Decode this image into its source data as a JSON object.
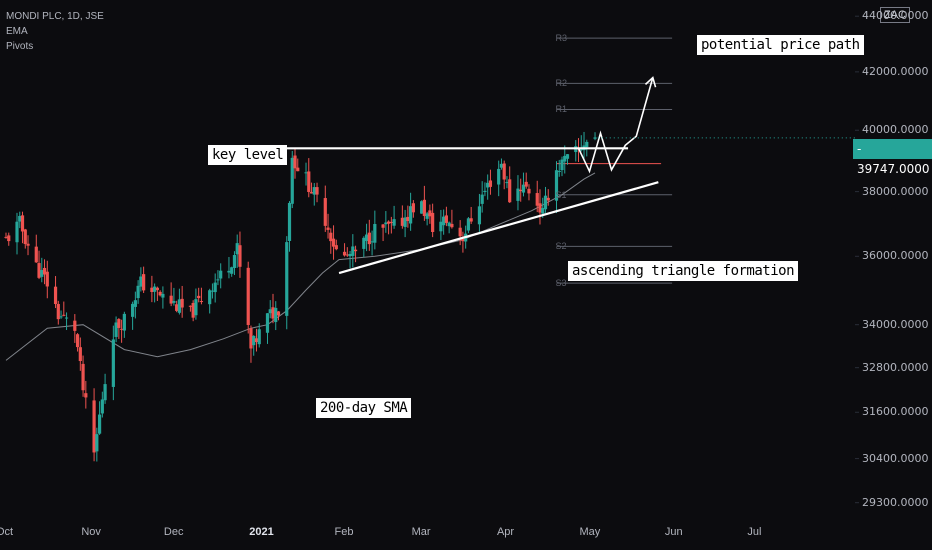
{
  "legend": {
    "symbol_line": "MONDI PLC, 1D, JSE",
    "indicator_1": "EMA",
    "indicator_2": "Pivots"
  },
  "symbol_badge": "ZAC",
  "last_price": "39747.0000",
  "annotations": {
    "key_level": "key level",
    "potential_path": "potential price path",
    "triangle": "ascending triangle formation",
    "sma": "200-day SMA"
  },
  "colors": {
    "background": "#0c0c0f",
    "up_candle": "#26a69a",
    "down_candle": "#ef5350",
    "price_tag": "#26a69a",
    "sma_line": "#9ea3aa",
    "annotation": "#ffffff"
  },
  "chart_data": {
    "type": "candlestick",
    "title": "MONDI PLC, 1D, JSE",
    "y_scale": "log",
    "ylim": [
      29000,
      44600
    ],
    "y_ticks": [
      "44000.0000",
      "42000.0000",
      "40000.0000",
      "38000.0000",
      "36000.0000",
      "34000.0000",
      "32800.0000",
      "31600.0000",
      "30400.0000",
      "29300.0000"
    ],
    "x_ticks": [
      "Oct",
      "Nov",
      "Dec",
      "2021",
      "Feb",
      "Mar",
      "Apr",
      "May",
      "Jun",
      "Jul"
    ],
    "x_range": [
      "2020-10-01",
      "2021-07-31"
    ],
    "price_series_approx": [
      [
        "2020-10-01",
        36500
      ],
      [
        "2020-10-06",
        37000
      ],
      [
        "2020-10-12",
        35700
      ],
      [
        "2020-10-16",
        35200
      ],
      [
        "2020-10-20",
        34300
      ],
      [
        "2020-10-26",
        33900
      ],
      [
        "2020-10-29",
        32200
      ],
      [
        "2020-11-02",
        30500
      ],
      [
        "2020-11-05",
        32000
      ],
      [
        "2020-11-09",
        33800
      ],
      [
        "2020-11-13",
        34200
      ],
      [
        "2020-11-19",
        35200
      ],
      [
        "2020-11-25",
        34900
      ],
      [
        "2020-12-01",
        34600
      ],
      [
        "2020-12-07",
        34300
      ],
      [
        "2020-12-13",
        35000
      ],
      [
        "2020-12-19",
        35500
      ],
      [
        "2020-12-24",
        36200
      ],
      [
        "2020-12-29",
        33300
      ],
      [
        "2021-01-04",
        34200
      ],
      [
        "2021-01-08",
        34500
      ],
      [
        "2021-01-11",
        36500
      ],
      [
        "2021-01-13",
        39100
      ],
      [
        "2021-01-18",
        38400
      ],
      [
        "2021-01-24",
        37400
      ],
      [
        "2021-01-30",
        35900
      ],
      [
        "2021-02-05",
        36100
      ],
      [
        "2021-02-12",
        36800
      ],
      [
        "2021-02-20",
        36900
      ],
      [
        "2021-02-28",
        37700
      ],
      [
        "2021-03-05",
        36900
      ],
      [
        "2021-03-10",
        37100
      ],
      [
        "2021-03-16",
        36600
      ],
      [
        "2021-03-22",
        37700
      ],
      [
        "2021-03-27",
        38500
      ],
      [
        "2021-03-30",
        38900
      ],
      [
        "2021-04-02",
        37800
      ],
      [
        "2021-04-06",
        38200
      ],
      [
        "2021-04-10",
        38000
      ],
      [
        "2021-04-14",
        37300
      ],
      [
        "2021-04-18",
        38600
      ],
      [
        "2021-04-21",
        38900
      ],
      [
        "2021-04-24",
        39100
      ],
      [
        "2021-04-27",
        39300
      ],
      [
        "2021-04-29",
        39600
      ],
      [
        "2021-05-03",
        39747
      ]
    ],
    "sma_series_approx": [
      [
        "2020-10-01",
        33000
      ],
      [
        "2020-10-16",
        33900
      ],
      [
        "2020-10-29",
        34000
      ],
      [
        "2020-11-13",
        33300
      ],
      [
        "2020-11-25",
        33100
      ],
      [
        "2020-12-07",
        33300
      ],
      [
        "2020-12-19",
        33600
      ],
      [
        "2020-12-29",
        33900
      ],
      [
        "2021-01-04",
        34000
      ],
      [
        "2021-01-11",
        34400
      ],
      [
        "2021-01-18",
        35000
      ],
      [
        "2021-01-24",
        35500
      ],
      [
        "2021-01-30",
        35900
      ],
      [
        "2021-02-12",
        36000
      ],
      [
        "2021-02-28",
        36200
      ],
      [
        "2021-03-16",
        36500
      ],
      [
        "2021-03-27",
        36900
      ],
      [
        "2021-04-10",
        37400
      ],
      [
        "2021-04-21",
        37900
      ],
      [
        "2021-04-29",
        38400
      ],
      [
        "2021-05-03",
        38600
      ]
    ],
    "pivot_levels": [
      {
        "label": "R3",
        "value": 43200
      },
      {
        "label": "R2",
        "value": 41600
      },
      {
        "label": "R1",
        "value": 40700
      },
      {
        "label": "P",
        "value": 38900
      },
      {
        "label": "S1",
        "value": 37900
      },
      {
        "label": "S2",
        "value": 36300
      },
      {
        "label": "S3",
        "value": 35200
      }
    ],
    "key_level": 39400,
    "trendline": [
      [
        "2021-01-30",
        35500
      ],
      [
        "2021-05-26",
        38300
      ]
    ],
    "projected_path": [
      [
        "2021-04-27",
        39400
      ],
      [
        "2021-05-01",
        38650
      ],
      [
        "2021-05-05",
        39900
      ],
      [
        "2021-05-09",
        38700
      ],
      [
        "2021-05-14",
        39500
      ],
      [
        "2021-05-18",
        39800
      ],
      [
        "2021-05-24",
        41800
      ]
    ]
  }
}
